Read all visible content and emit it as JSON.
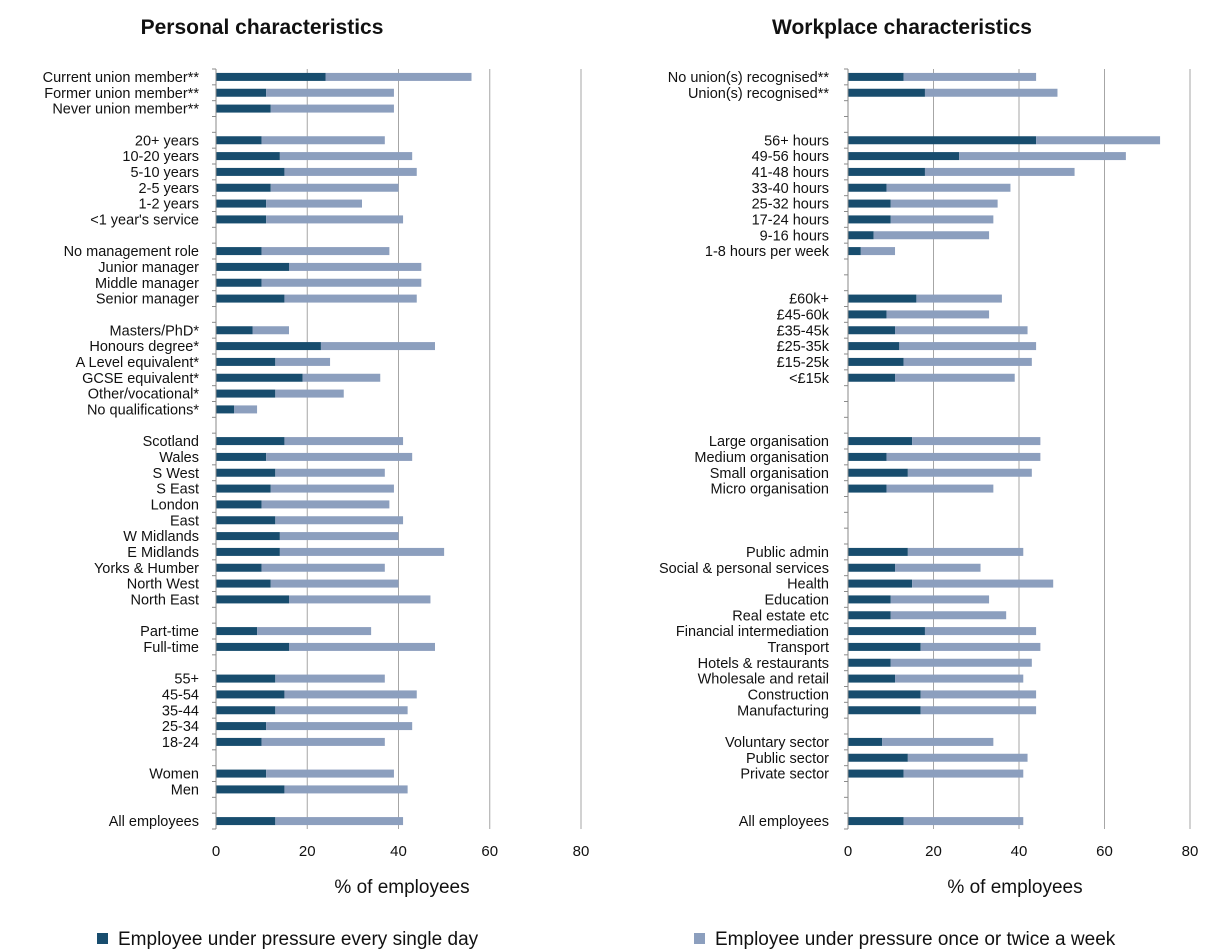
{
  "colors": {
    "daily": "#184d6e",
    "weekly": "#8c9fbe",
    "grid": "#a6a6a6",
    "axis": "#8a8a8a",
    "text": "#111111"
  },
  "legend": {
    "daily": "Employee under pressure every single day",
    "weekly": "Employee under pressure once or twice a week"
  },
  "chart_data": [
    {
      "type": "bar",
      "orientation": "horizontal",
      "stacked": true,
      "title": "Personal characteristics",
      "xlabel": "% of employees",
      "xlim": [
        0,
        80
      ],
      "xticks": [
        0,
        20,
        40,
        60,
        80
      ],
      "grid": true,
      "legend_position": "bottom",
      "categories": [
        "Current union member**",
        "Former union member**",
        "Never union member**",
        "",
        "20+ years",
        "10-20 years",
        "5-10 years",
        "2-5 years",
        "1-2 years",
        "<1 year's service",
        "",
        "No management role",
        "Junior manager",
        "Middle manager",
        "Senior manager",
        "",
        "Masters/PhD*",
        "Honours degree*",
        "A Level equivalent*",
        "GCSE equivalent*",
        "Other/vocational*",
        "No qualifications*",
        "",
        "Scotland",
        "Wales",
        "S West",
        "S East",
        "London",
        "East",
        "W Midlands",
        "E Midlands",
        "Yorks & Humber",
        "North West",
        "North East",
        "",
        "Part-time",
        "Full-time",
        "",
        "55+",
        "45-54",
        "35-44",
        "25-34",
        "18-24",
        "",
        "Women",
        "Men",
        "",
        "All employees"
      ],
      "series": [
        {
          "name": "Employee under pressure every single day",
          "values": [
            24,
            11,
            12,
            null,
            10,
            14,
            15,
            12,
            11,
            11,
            null,
            10,
            16,
            10,
            15,
            null,
            8,
            23,
            13,
            19,
            13,
            4,
            null,
            15,
            11,
            13,
            12,
            10,
            13,
            14,
            14,
            10,
            12,
            16,
            null,
            9,
            16,
            null,
            13,
            15,
            13,
            11,
            10,
            null,
            11,
            15,
            null,
            13
          ]
        },
        {
          "name": "Employee under pressure once or twice a week",
          "values": [
            32,
            28,
            27,
            null,
            27,
            29,
            29,
            28,
            21,
            30,
            null,
            28,
            29,
            35,
            29,
            null,
            8,
            25,
            12,
            17,
            15,
            5,
            null,
            26,
            32,
            24,
            27,
            28,
            28,
            26,
            36,
            27,
            28,
            31,
            null,
            25,
            32,
            null,
            24,
            29,
            29,
            32,
            27,
            null,
            28,
            27,
            null,
            28
          ]
        }
      ]
    },
    {
      "type": "bar",
      "orientation": "horizontal",
      "stacked": true,
      "title": "Workplace characteristics",
      "xlabel": "% of employees",
      "xlim": [
        0,
        80
      ],
      "xticks": [
        0,
        20,
        40,
        60,
        80
      ],
      "grid": true,
      "legend_position": "bottom",
      "categories": [
        "No union(s) recognised**",
        "Union(s) recognised**",
        "",
        "",
        "56+ hours",
        "49-56 hours",
        "41-48 hours",
        "33-40 hours",
        "25-32 hours",
        "17-24 hours",
        "9-16 hours",
        "1-8 hours per week",
        "",
        "",
        "£60k+",
        "£45-60k",
        "£35-45k",
        "£25-35k",
        "£15-25k",
        "<£15k",
        "",
        "",
        "",
        "Large organisation",
        "Medium organisation",
        "Small organisation",
        "Micro organisation",
        "",
        "",
        "",
        "Public admin",
        "Social & personal services",
        "Health",
        "Education",
        "Real estate etc",
        "Financial intermediation",
        "Transport",
        "Hotels & restaurants",
        "Wholesale and retail",
        "Construction",
        "Manufacturing",
        "",
        "Voluntary sector",
        "Public sector",
        "Private sector",
        "",
        "",
        "All employees"
      ],
      "series": [
        {
          "name": "Employee under pressure every single day",
          "values": [
            13,
            18,
            null,
            null,
            44,
            26,
            18,
            9,
            10,
            10,
            6,
            3,
            null,
            null,
            16,
            9,
            11,
            12,
            13,
            11,
            null,
            null,
            null,
            15,
            9,
            14,
            9,
            null,
            null,
            null,
            14,
            11,
            15,
            10,
            10,
            18,
            17,
            10,
            11,
            17,
            17,
            null,
            8,
            14,
            13,
            null,
            null,
            13
          ]
        },
        {
          "name": "Employee under pressure once or twice a week",
          "values": [
            31,
            31,
            null,
            null,
            29,
            39,
            35,
            29,
            25,
            24,
            27,
            8,
            null,
            null,
            20,
            24,
            31,
            32,
            30,
            28,
            null,
            null,
            null,
            30,
            36,
            29,
            25,
            null,
            null,
            null,
            27,
            20,
            33,
            23,
            27,
            26,
            28,
            33,
            30,
            27,
            27,
            null,
            26,
            28,
            28,
            null,
            null,
            28
          ]
        }
      ]
    }
  ]
}
